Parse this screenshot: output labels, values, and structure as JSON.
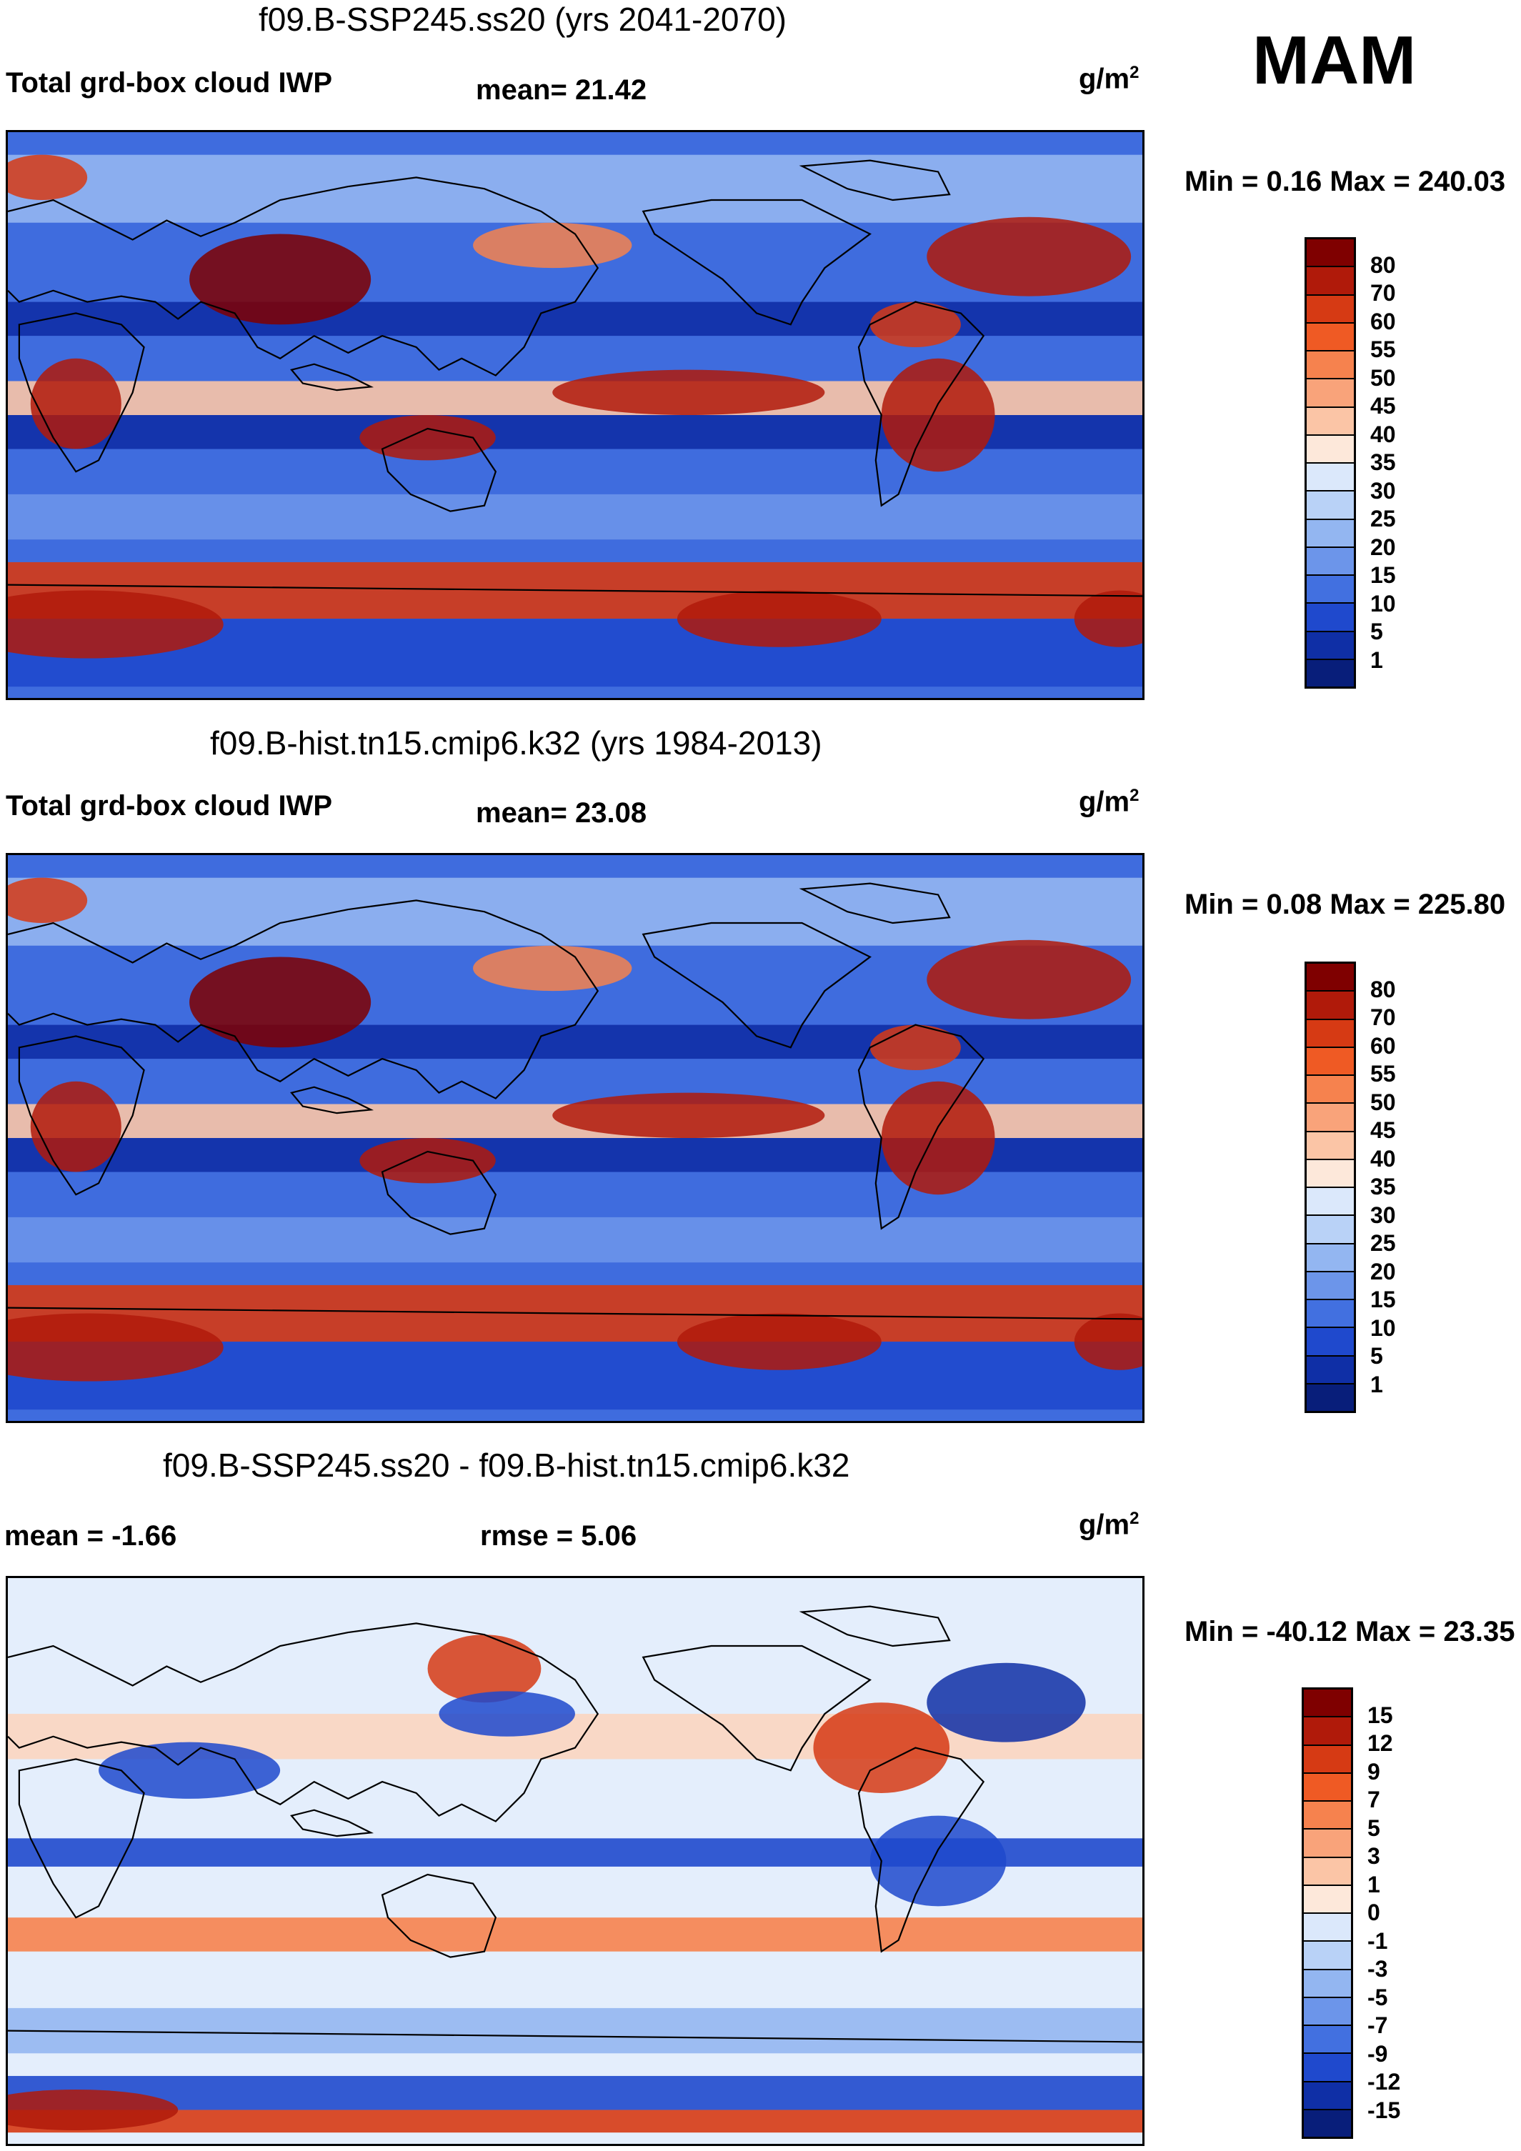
{
  "season": "MAM",
  "panels": [
    {
      "title": "f09.B-SSP245.ss20 (yrs 2041-2070)",
      "left_label": "Total grd-box cloud IWP",
      "center_label": "mean=  21.42",
      "units": "g/m",
      "units_exp": "2",
      "minmax": "Min =   0.16 Max = 240.03",
      "colorbar_ticks": [
        "80",
        "70",
        "60",
        "55",
        "50",
        "45",
        "40",
        "35",
        "30",
        "25",
        "20",
        "15",
        "10",
        "5",
        "1"
      ],
      "colorbar_colors": [
        "#7f0000",
        "#b01a0a",
        "#d63a14",
        "#ef5a24",
        "#f6824e",
        "#f9a37a",
        "#fbc5a6",
        "#fde8da",
        "#dbe8fb",
        "#b9d2f7",
        "#93b6f1",
        "#6c95ea",
        "#4270e0",
        "#1f49cd",
        "#0f2fa6",
        "#081e7a"
      ],
      "map_style": "positive"
    },
    {
      "title": "f09.B-hist.tn15.cmip6.k32 (yrs 1984-2013)",
      "left_label": "Total grd-box cloud IWP",
      "center_label": "mean=  23.08",
      "units": "g/m",
      "units_exp": "2",
      "minmax": "Min =   0.08 Max = 225.80",
      "colorbar_ticks": [
        "80",
        "70",
        "60",
        "55",
        "50",
        "45",
        "40",
        "35",
        "30",
        "25",
        "20",
        "15",
        "10",
        "5",
        "1"
      ],
      "colorbar_colors": [
        "#7f0000",
        "#b01a0a",
        "#d63a14",
        "#ef5a24",
        "#f6824e",
        "#f9a37a",
        "#fbc5a6",
        "#fde8da",
        "#dbe8fb",
        "#b9d2f7",
        "#93b6f1",
        "#6c95ea",
        "#4270e0",
        "#1f49cd",
        "#0f2fa6",
        "#081e7a"
      ],
      "map_style": "positive"
    },
    {
      "title": "f09.B-SSP245.ss20 - f09.B-hist.tn15.cmip6.k32",
      "left_label": "mean =  -1.66",
      "center_label": "rmse =    5.06",
      "units": "g/m",
      "units_exp": "2",
      "minmax": "Min = -40.12 Max =  23.35",
      "colorbar_ticks": [
        "15",
        "12",
        "9",
        "7",
        "5",
        "3",
        "1",
        "0",
        "-1",
        "-3",
        "-5",
        "-7",
        "-9",
        "-12",
        "-15"
      ],
      "colorbar_colors": [
        "#7f0000",
        "#b01a0a",
        "#d63a14",
        "#ef5a24",
        "#f6824e",
        "#f9a37a",
        "#fbc5a6",
        "#fde8da",
        "#dbe8fb",
        "#b9d2f7",
        "#93b6f1",
        "#6c95ea",
        "#4270e0",
        "#1f49cd",
        "#0f2fa6",
        "#081e7a"
      ],
      "map_style": "difference"
    }
  ]
}
